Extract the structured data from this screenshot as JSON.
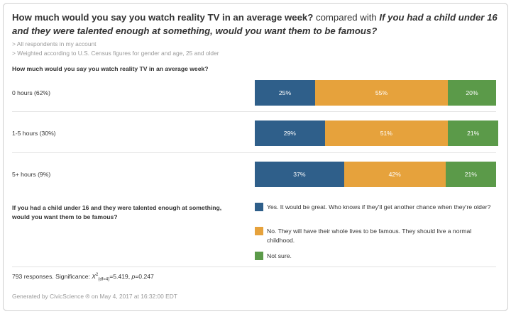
{
  "title": {
    "q1": "How much would you say you watch reality TV in an average week?",
    "compared_with": " compared with ",
    "q2": "If you had a child under 16 and they were talented enough at something, would you want them to be famous?"
  },
  "filters": [
    "> All respondents in my account",
    "> Weighted according to U.S. Census figures for gender and age, 25 and older"
  ],
  "row_question": "How much would you say you watch reality TV in an average week?",
  "column_question": "If you had a child under 16 and they were talented enough at something, would you want them to be famous?",
  "colors": {
    "yes": "#2f5f8a",
    "no": "#e6a23c",
    "not_sure": "#5b9a49"
  },
  "chart_data": {
    "type": "bar",
    "stacked": true,
    "orientation": "horizontal",
    "normalized_to_100": true,
    "categories": [
      "0 hours (62%)",
      "1-5 hours (30%)",
      "5+ hours (9%)"
    ],
    "series": [
      {
        "name": "Yes. It would be great. Who knows if they'll get another chance when they're older?",
        "values": [
          25,
          29,
          37
        ],
        "labels": [
          "25%",
          "29%",
          "37%"
        ]
      },
      {
        "name": "No. They will have their whole lives to be famous. They should live a normal childhood.",
        "values": [
          55,
          51,
          42
        ],
        "labels": [
          "55%",
          "51%",
          "42%"
        ]
      },
      {
        "name": "Not sure.",
        "values": [
          20,
          21,
          21
        ],
        "labels": [
          "20%",
          "21%",
          "21%"
        ]
      }
    ],
    "legend_position": "bottom-right"
  },
  "stats": {
    "prefix": "793 responses. Significance: ",
    "chi": "X",
    "chi_sup": "2",
    "chi_sub": "(df=4)",
    "chi_value": "=5.419, ",
    "p_label": "p",
    "p_value": "=0.247"
  },
  "generated": "Generated by CivicScience ® on May 4, 2017 at 16:32:00 EDT"
}
